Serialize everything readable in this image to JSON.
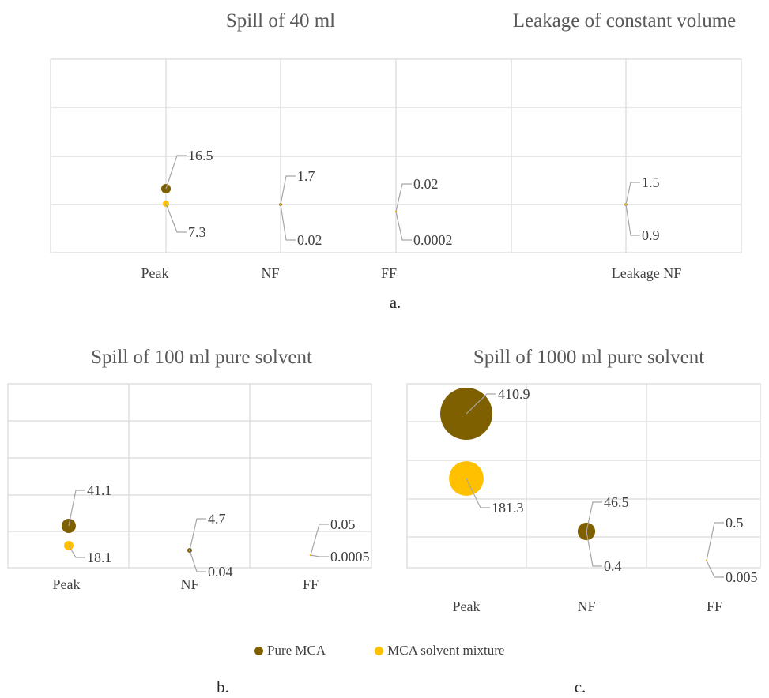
{
  "colors": {
    "pure_mca": "#7f6000",
    "mca_solvent_mixture": "#ffc000",
    "gridline": "#d9d9d9",
    "leader_line": "#a6a6a6",
    "text": "#404040"
  },
  "legend": {
    "pure_mca": "Pure MCA",
    "mca_solvent_mixture": "MCA solvent mixture"
  },
  "panels": {
    "a": {
      "letter": "a.",
      "title_left": "Spill of 40 ml",
      "title_right": "Leakage of constant volume"
    },
    "b": {
      "letter": "b.",
      "title": "Spill of 100 ml pure solvent"
    },
    "c": {
      "letter": "c.",
      "title": "Spill of 1000 ml pure solvent"
    }
  },
  "chart_data": [
    {
      "type": "scatter",
      "title": "Spill of 40 ml / Leakage of constant volume",
      "categories": [
        "Peak",
        "NF",
        "FF",
        "Leakage NF"
      ],
      "series": [
        {
          "name": "Pure MCA",
          "values": [
            16.5,
            1.7,
            0.02,
            1.5
          ]
        },
        {
          "name": "MCA solvent mixture",
          "values": [
            7.3,
            0.02,
            0.0002,
            0.9
          ]
        }
      ],
      "value_labels": {
        "Pure MCA": [
          "16.5",
          "1.7",
          "0.02",
          "1.5"
        ],
        "MCA solvent mixture": [
          "7.3",
          "0.02",
          "0.0002",
          "0.9"
        ]
      },
      "grid": true,
      "legend": "bottom"
    },
    {
      "type": "scatter",
      "title": "Spill of 100 ml pure solvent",
      "categories": [
        "Peak",
        "NF",
        "FF"
      ],
      "series": [
        {
          "name": "Pure MCA",
          "values": [
            41.1,
            4.7,
            0.05
          ]
        },
        {
          "name": "MCA solvent mixture",
          "values": [
            18.1,
            0.04,
            0.0005
          ]
        }
      ],
      "value_labels": {
        "Pure MCA": [
          "41.1",
          "4.7",
          "0.05"
        ],
        "MCA solvent mixture": [
          "18.1",
          "0.04",
          "0.0005"
        ]
      },
      "grid": true,
      "legend": "bottom"
    },
    {
      "type": "scatter",
      "title": "Spill of 1000 ml pure solvent",
      "categories": [
        "Peak",
        "NF",
        "FF"
      ],
      "series": [
        {
          "name": "Pure MCA",
          "values": [
            410.9,
            46.5,
            0.5
          ]
        },
        {
          "name": "MCA solvent mixture",
          "values": [
            181.3,
            0.4,
            0.005
          ]
        }
      ],
      "value_labels": {
        "Pure MCA": [
          "410.9",
          "46.5",
          "0.5"
        ],
        "MCA solvent mixture": [
          "181.3",
          "0.4",
          "0.005"
        ]
      },
      "grid": true,
      "legend": "bottom"
    }
  ]
}
